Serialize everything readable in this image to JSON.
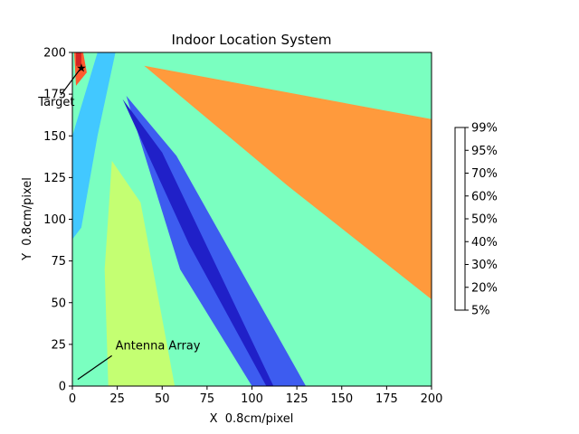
{
  "chart_data": {
    "type": "contour",
    "title": "Indoor Location System",
    "xlabel": "X  0.8cm/pixel",
    "ylabel": "Y  0.8cm/pixel",
    "xlim": [
      0,
      200
    ],
    "ylim": [
      0,
      200
    ],
    "x_ticks": [
      "0",
      "25",
      "50",
      "75",
      "100",
      "125",
      "150",
      "175",
      "200"
    ],
    "y_ticks": [
      "0",
      "25",
      "50",
      "75",
      "100",
      "125",
      "150",
      "175",
      "200"
    ],
    "x_tick_values": [
      0,
      25,
      50,
      75,
      100,
      125,
      150,
      175,
      200
    ],
    "y_tick_values": [
      0,
      25,
      50,
      75,
      100,
      125,
      150,
      175,
      200
    ],
    "colorbar": {
      "labels": [
        "5%",
        "20%",
        "30%",
        "40%",
        "50%",
        "60%",
        "70%",
        "95%",
        "99%"
      ],
      "colors": [
        "#2020c8",
        "#3d5cf0",
        "#42c8ff",
        "#7affc0",
        "#c4ff72",
        "#ffda40",
        "#ff9a3c",
        "#ff5a2e",
        "#d42424"
      ]
    },
    "regions_by_level": [
      {
        "level": "50%",
        "points": [
          [
            20,
            0
          ],
          [
            57,
            0
          ],
          [
            38,
            110
          ],
          [
            22,
            135
          ],
          [
            18,
            70
          ]
        ]
      },
      {
        "level": "30%",
        "points": [
          [
            14,
            200
          ],
          [
            24,
            200
          ],
          [
            14,
            150
          ],
          [
            5,
            95
          ],
          [
            0,
            88
          ],
          [
            0,
            150
          ]
        ]
      },
      {
        "level": "70%",
        "points": [
          [
            40,
            192
          ],
          [
            200,
            160
          ],
          [
            200,
            52
          ],
          [
            120,
            120
          ]
        ]
      },
      {
        "level": "20%",
        "points": [
          [
            30,
            174
          ],
          [
            58,
            138
          ],
          [
            130,
            0
          ],
          [
            100,
            0
          ],
          [
            60,
            70
          ]
        ]
      },
      {
        "level": "5%",
        "points": [
          [
            28,
            172
          ],
          [
            50,
            140
          ],
          [
            112,
            0
          ],
          [
            108,
            0
          ],
          [
            65,
            85
          ]
        ]
      },
      {
        "level": "95%",
        "points": [
          [
            1,
            200
          ],
          [
            6,
            200
          ],
          [
            8,
            188
          ],
          [
            2,
            180
          ]
        ]
      },
      {
        "level": "99%",
        "points": [
          [
            2,
            200
          ],
          [
            5,
            200
          ],
          [
            5,
            192
          ],
          [
            2,
            192
          ]
        ]
      }
    ],
    "annotations": [
      {
        "text": "Target",
        "x": 5,
        "y": 191,
        "text_x": -19,
        "text_y": 168
      },
      {
        "text": "Antenna Array",
        "x": 3,
        "y": 4,
        "text_x": 24,
        "text_y": 22
      }
    ]
  }
}
